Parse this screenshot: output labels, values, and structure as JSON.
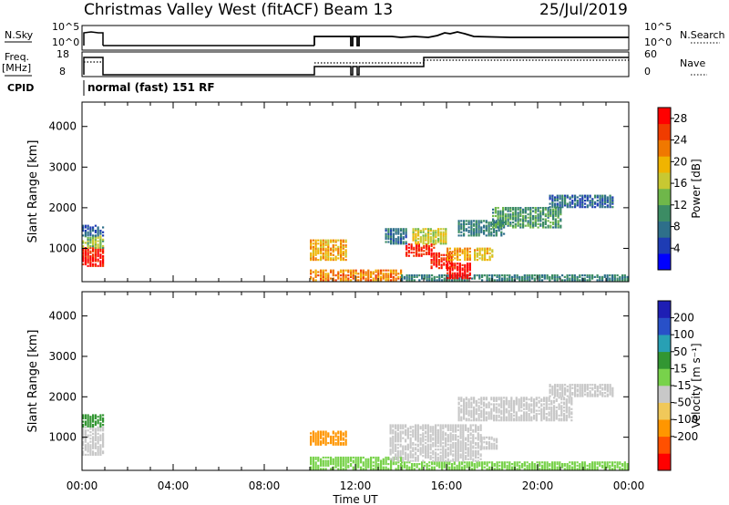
{
  "header": {
    "title": "Christmas Valley West (fitACF)",
    "beam": "Beam 13",
    "date": "25/Jul/2019"
  },
  "top_panels": {
    "nsky_label": "N.Sky",
    "nsky_ticks": [
      "10^5",
      "10^0"
    ],
    "nsearch_label": "N.Search",
    "nsearch_ticks": [
      "10^5",
      "10^0"
    ],
    "freq_label": "Freq.",
    "freq_unit": "[MHz]",
    "freq_ticks": [
      "18",
      "8"
    ],
    "nave_label": "Nave",
    "nave_ticks": [
      "60",
      "0"
    ],
    "cpid_label": "CPID",
    "cpid_text": "normal (fast) 151 RF"
  },
  "x_axis": {
    "label": "Time UT",
    "ticks": [
      "00:00",
      "04:00",
      "08:00",
      "12:00",
      "16:00",
      "20:00",
      "00:00"
    ],
    "tick_hours": [
      0,
      4,
      8,
      12,
      16,
      20,
      24
    ]
  },
  "chart_data": [
    {
      "type": "heatmap",
      "panel": "power",
      "ylabel": "Slant Range [km]",
      "yticks": [
        1000,
        2000,
        3000,
        4000
      ],
      "ylim": [
        180,
        4600
      ],
      "xlim": [
        0,
        24
      ],
      "colorbar": {
        "label": "Power [dB]",
        "ticks": [
          "28",
          "24",
          "20",
          "16",
          "12",
          "8",
          "4"
        ],
        "tick_values": [
          28,
          24,
          20,
          16,
          12,
          8,
          4
        ],
        "range": [
          0,
          30
        ],
        "colors": [
          "#0000ff",
          "#1e3cb4",
          "#2e6f8a",
          "#3c8c64",
          "#6fb74a",
          "#c8c832",
          "#f0b400",
          "#f07800",
          "#f03c00",
          "#ff0000"
        ]
      },
      "patches": [
        {
          "t0": 0.0,
          "t1": 0.9,
          "r0": 550,
          "r1": 1000,
          "value": 28
        },
        {
          "t0": 0.0,
          "t1": 0.9,
          "r0": 1000,
          "r1": 1300,
          "value": 14
        },
        {
          "t0": 0.0,
          "t1": 0.9,
          "r0": 1300,
          "r1": 1550,
          "value": 6
        },
        {
          "t0": 10.0,
          "t1": 11.6,
          "r0": 700,
          "r1": 1200,
          "value": 20
        },
        {
          "t0": 10.0,
          "t1": 14.0,
          "r0": 200,
          "r1": 450,
          "value": 22
        },
        {
          "t0": 14.0,
          "t1": 24.0,
          "r0": 200,
          "r1": 350,
          "value": 9
        },
        {
          "t0": 14.2,
          "t1": 15.5,
          "r0": 800,
          "r1": 1100,
          "value": 27
        },
        {
          "t0": 15.3,
          "t1": 16.2,
          "r0": 500,
          "r1": 900,
          "value": 27
        },
        {
          "t0": 16.0,
          "t1": 17.0,
          "r0": 250,
          "r1": 650,
          "value": 29
        },
        {
          "t0": 14.5,
          "t1": 16.0,
          "r0": 1100,
          "r1": 1500,
          "value": 17
        },
        {
          "t0": 16.0,
          "t1": 17.0,
          "r0": 700,
          "r1": 1000,
          "value": 21
        },
        {
          "t0": 17.2,
          "t1": 18.0,
          "r0": 700,
          "r1": 1000,
          "value": 19
        },
        {
          "t0": 16.5,
          "t1": 18.5,
          "r0": 1300,
          "r1": 1700,
          "value": 9
        },
        {
          "t0": 18.0,
          "t1": 21.0,
          "r0": 1500,
          "r1": 2000,
          "value": 11
        },
        {
          "t0": 20.5,
          "t1": 23.3,
          "r0": 2000,
          "r1": 2300,
          "value": 7
        },
        {
          "t0": 13.3,
          "t1": 14.2,
          "r0": 1100,
          "r1": 1500,
          "value": 8
        }
      ]
    },
    {
      "type": "heatmap",
      "panel": "velocity",
      "ylabel": "Slant Range [km]",
      "yticks": [
        1000,
        2000,
        3000,
        4000
      ],
      "ylim": [
        180,
        4600
      ],
      "xlim": [
        0,
        24
      ],
      "colorbar": {
        "label": "Velocity [m s⁻¹]",
        "ticks": [
          "200",
          "100",
          "50",
          "15",
          "-15",
          "-50",
          "-100",
          "-200"
        ],
        "tick_values": [
          200,
          100,
          50,
          15,
          -15,
          -50,
          -100,
          -200
        ],
        "colors": [
          "#ff0000",
          "#ff5000",
          "#ff9600",
          "#f0c85a",
          "#c8c8c8",
          "#78d24b",
          "#329632",
          "#28a0b4",
          "#2850c8",
          "#1e1eb4"
        ]
      },
      "patches": [
        {
          "t0": 0.0,
          "t1": 0.9,
          "r0": 550,
          "r1": 1250,
          "value": 0
        },
        {
          "t0": 0.0,
          "t1": 0.9,
          "r0": 1250,
          "r1": 1550,
          "value": 60
        },
        {
          "t0": 10.0,
          "t1": 11.6,
          "r0": 800,
          "r1": 1150,
          "value": -70
        },
        {
          "t0": 10.0,
          "t1": 14.0,
          "r0": 200,
          "r1": 500,
          "value": 40
        },
        {
          "t0": 14.0,
          "t1": 24.0,
          "r0": 200,
          "r1": 380,
          "value": 30
        },
        {
          "t0": 13.5,
          "t1": 17.5,
          "r0": 400,
          "r1": 1300,
          "value": 0
        },
        {
          "t0": 16.5,
          "t1": 21.5,
          "r0": 1400,
          "r1": 2000,
          "value": 0
        },
        {
          "t0": 20.5,
          "t1": 23.3,
          "r0": 2000,
          "r1": 2300,
          "value": 0
        },
        {
          "t0": 17.5,
          "t1": 18.2,
          "r0": 700,
          "r1": 1000,
          "value": 0
        }
      ]
    }
  ]
}
